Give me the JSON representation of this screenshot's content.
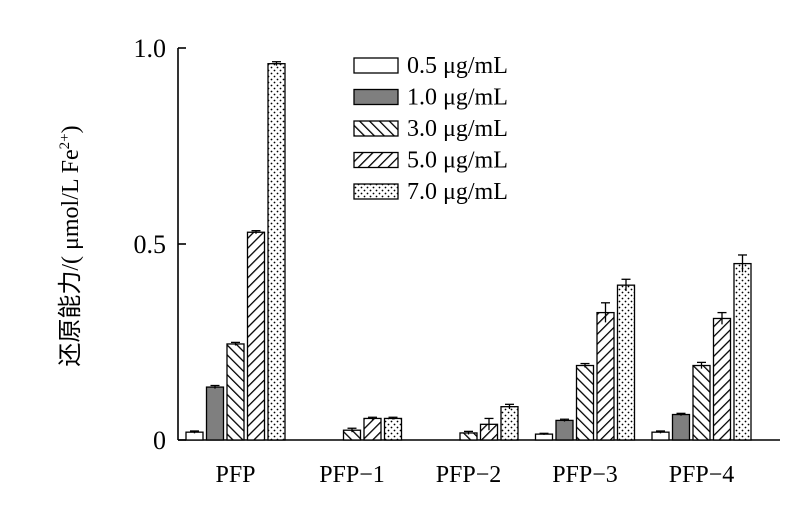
{
  "chart_data": {
    "type": "bar",
    "categories": [
      "PFP",
      "PFP−1",
      "PFP−2",
      "PFP−3",
      "PFP−4"
    ],
    "ylabel": "还原能力/(μmol/L Fe²⁺)",
    "ylabel_parts": {
      "main": "还原能力/( μmol/L Fe",
      "sup": "2+",
      "close": ")"
    },
    "xlabel": "",
    "ylim": [
      0,
      1.0
    ],
    "yticks": [
      {
        "value": 0,
        "label": "0"
      },
      {
        "value": 0.5,
        "label": "0.5"
      },
      {
        "value": 1.0,
        "label": "1.0"
      }
    ],
    "legend_position": "top-center",
    "series": [
      {
        "name": "0.5 μg/mL",
        "pattern": "empty",
        "values": [
          0.02,
          null,
          null,
          0.015,
          0.02
        ],
        "errors": [
          0.003,
          null,
          null,
          0.002,
          0.003
        ]
      },
      {
        "name": "1.0 μg/mL",
        "pattern": "solid-gray",
        "values": [
          0.135,
          null,
          null,
          0.05,
          0.065
        ],
        "errors": [
          0.004,
          null,
          null,
          0.003,
          0.003
        ]
      },
      {
        "name": "3.0 μg/mL",
        "pattern": "backslash-hatch",
        "values": [
          0.245,
          0.025,
          0.018,
          0.19,
          0.19
        ],
        "errors": [
          0.004,
          0.005,
          0.004,
          0.005,
          0.008
        ]
      },
      {
        "name": "5.0 μg/mL",
        "pattern": "slash-hatch",
        "values": [
          0.53,
          0.055,
          0.04,
          0.325,
          0.31
        ],
        "errors": [
          0.004,
          0.003,
          0.015,
          0.025,
          0.015
        ]
      },
      {
        "name": "7.0 μg/mL",
        "pattern": "dots",
        "values": [
          0.96,
          0.055,
          0.085,
          0.395,
          0.45
        ],
        "errors": [
          0.005,
          0.003,
          0.006,
          0.015,
          0.022
        ]
      }
    ],
    "colors": {
      "axis": "#000000",
      "gray_fill": "#7f7f7f",
      "background": "#ffffff"
    }
  }
}
